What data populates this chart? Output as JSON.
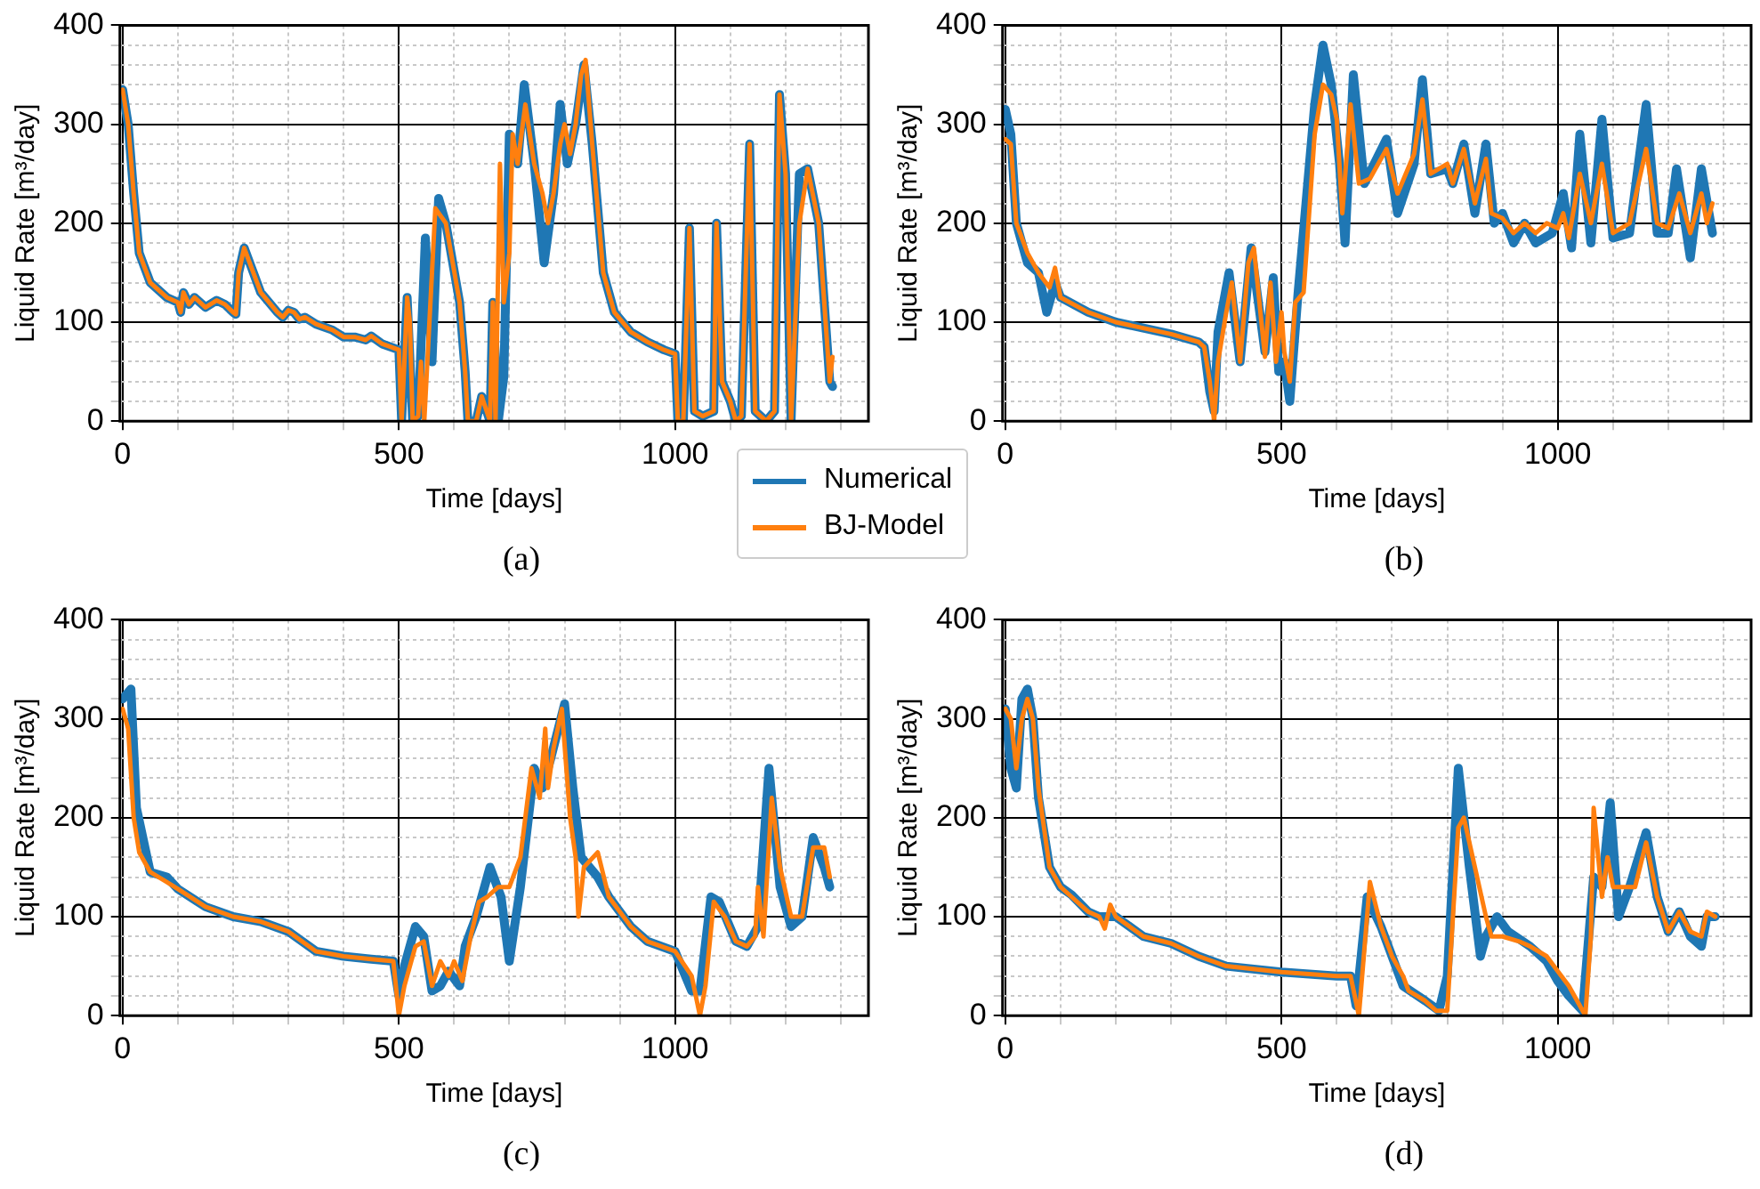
{
  "chart_data": [
    {
      "type": "line",
      "xlabel": "Time [days]",
      "ylabel": "Liquid Rate [m³/day]",
      "annotations": [
        "(a)"
      ],
      "xlim": [
        -5,
        1350
      ],
      "ylim": [
        0,
        400
      ],
      "xticks": [
        0,
        {
          "value": 100,
          "label": null
        },
        {
          "value": 200,
          "label": null
        },
        {
          "value": 300,
          "label": null
        },
        {
          "value": 400,
          "label": null
        },
        500,
        {
          "value": 600,
          "label": null
        },
        {
          "value": 700,
          "label": null
        },
        {
          "value": 800,
          "label": null
        },
        {
          "value": 900,
          "label": null
        },
        1000,
        {
          "value": 1100,
          "label": null
        },
        {
          "value": 1200,
          "label": null
        },
        {
          "value": 1300,
          "label": null
        }
      ],
      "yticks": [
        0,
        {
          "value": 20,
          "label": null
        },
        {
          "value": 40,
          "label": null
        },
        {
          "value": 60,
          "label": null
        },
        {
          "value": 80,
          "label": null
        },
        100,
        {
          "value": 120,
          "label": null
        },
        {
          "value": 140,
          "label": null
        },
        {
          "value": 160,
          "label": null
        },
        {
          "value": 180,
          "label": null
        },
        200,
        {
          "value": 220,
          "label": null
        },
        {
          "value": 240,
          "label": null
        },
        {
          "value": 260,
          "label": null
        },
        {
          "value": 280,
          "label": null
        },
        300,
        {
          "value": 320,
          "label": null
        },
        {
          "value": 340,
          "label": null
        },
        {
          "value": 360,
          "label": null
        },
        {
          "value": 380,
          "label": null
        },
        400
      ],
      "grid": true,
      "legend": "bottom right",
      "series": [
        {
          "name": "Numerical",
          "color": "#1f77b4",
          "x": [
            0,
            10,
            20,
            30,
            50,
            80,
            100,
            105,
            110,
            120,
            130,
            150,
            170,
            185,
            200,
            205,
            210,
            220,
            230,
            250,
            280,
            290,
            300,
            310,
            320,
            330,
            350,
            380,
            400,
            420,
            440,
            450,
            470,
            500,
            505,
            515,
            525,
            535,
            548,
            560,
            572,
            585,
            610,
            620,
            625,
            640,
            650,
            665,
            670,
            680,
            690,
            700,
            715,
            727,
            745,
            763,
            780,
            792,
            805,
            820,
            835,
            850,
            870,
            890,
            920,
            950,
            980,
            1000,
            1005,
            1015,
            1026,
            1035,
            1050,
            1070,
            1075,
            1085,
            1100,
            1110,
            1120,
            1135,
            1145,
            1165,
            1180,
            1189,
            1200,
            1210,
            1225,
            1240,
            1260,
            1270,
            1280,
            1285
          ],
          "values": [
            335,
            300,
            230,
            170,
            140,
            125,
            120,
            110,
            130,
            118,
            125,
            115,
            122,
            118,
            110,
            108,
            150,
            175,
            160,
            130,
            110,
            105,
            112,
            110,
            103,
            105,
            98,
            92,
            85,
            85,
            82,
            86,
            78,
            72,
            0,
            125,
            0,
            5,
            185,
            60,
            225,
            200,
            120,
            50,
            0,
            0,
            25,
            0,
            120,
            0,
            45,
            290,
            260,
            340,
            260,
            160,
            230,
            320,
            260,
            300,
            360,
            280,
            150,
            110,
            90,
            80,
            72,
            68,
            0,
            0,
            195,
            10,
            5,
            10,
            200,
            40,
            20,
            0,
            5,
            280,
            10,
            0,
            10,
            330,
            250,
            0,
            250,
            255,
            200,
            120,
            40,
            35
          ]
        },
        {
          "name": "BJ-Model",
          "color": "#ff7f0e",
          "x": [
            0,
            10,
            20,
            30,
            50,
            80,
            100,
            105,
            110,
            120,
            130,
            150,
            170,
            185,
            200,
            205,
            210,
            220,
            230,
            250,
            280,
            290,
            300,
            310,
            320,
            330,
            350,
            380,
            400,
            420,
            440,
            450,
            470,
            500,
            505,
            510,
            515,
            520,
            525,
            535,
            540,
            546,
            566,
            585,
            610,
            620,
            625,
            640,
            650,
            665,
            670,
            675,
            683,
            690,
            700,
            706,
            715,
            729,
            745,
            760,
            770,
            780,
            792,
            800,
            810,
            820,
            830,
            838,
            850,
            870,
            890,
            920,
            950,
            980,
            1000,
            1005,
            1015,
            1026,
            1035,
            1050,
            1070,
            1075,
            1085,
            1100,
            1110,
            1120,
            1135,
            1145,
            1165,
            1180,
            1189,
            1200,
            1210,
            1225,
            1240,
            1260,
            1270,
            1280,
            1285
          ],
          "values": [
            335,
            300,
            230,
            170,
            140,
            125,
            120,
            110,
            130,
            118,
            125,
            115,
            122,
            118,
            110,
            108,
            150,
            175,
            160,
            130,
            110,
            105,
            112,
            110,
            103,
            105,
            98,
            92,
            85,
            85,
            82,
            86,
            78,
            72,
            0,
            60,
            125,
            100,
            0,
            5,
            60,
            0,
            215,
            200,
            120,
            50,
            0,
            0,
            25,
            0,
            120,
            0,
            260,
            120,
            170,
            290,
            260,
            320,
            260,
            230,
            200,
            230,
            280,
            300,
            270,
            300,
            350,
            365,
            280,
            150,
            110,
            90,
            80,
            72,
            68,
            0,
            0,
            195,
            10,
            5,
            10,
            200,
            40,
            20,
            0,
            5,
            280,
            10,
            0,
            10,
            330,
            250,
            0,
            200,
            255,
            200,
            120,
            40,
            65
          ]
        }
      ]
    },
    {
      "type": "line",
      "xlabel": "Time [days]",
      "ylabel": "Liquid Rate [m³/day]",
      "annotations": [
        "(b)"
      ],
      "xlim": [
        -5,
        1350
      ],
      "ylim": [
        0,
        400
      ],
      "xticks": [
        0,
        {
          "value": 100,
          "label": null
        },
        {
          "value": 200,
          "label": null
        },
        {
          "value": 300,
          "label": null
        },
        {
          "value": 400,
          "label": null
        },
        500,
        {
          "value": 600,
          "label": null
        },
        {
          "value": 700,
          "label": null
        },
        {
          "value": 800,
          "label": null
        },
        {
          "value": 900,
          "label": null
        },
        1000,
        {
          "value": 1100,
          "label": null
        },
        {
          "value": 1200,
          "label": null
        },
        {
          "value": 1300,
          "label": null
        }
      ],
      "yticks": [
        0,
        {
          "value": 20,
          "label": null
        },
        {
          "value": 40,
          "label": null
        },
        {
          "value": 60,
          "label": null
        },
        {
          "value": 80,
          "label": null
        },
        100,
        {
          "value": 120,
          "label": null
        },
        {
          "value": 140,
          "label": null
        },
        {
          "value": 160,
          "label": null
        },
        {
          "value": 180,
          "label": null
        },
        200,
        {
          "value": 220,
          "label": null
        },
        {
          "value": 240,
          "label": null
        },
        {
          "value": 260,
          "label": null
        },
        {
          "value": 280,
          "label": null
        },
        300,
        {
          "value": 320,
          "label": null
        },
        {
          "value": 340,
          "label": null
        },
        {
          "value": 360,
          "label": null
        },
        {
          "value": 380,
          "label": null
        },
        400
      ],
      "grid": true,
      "series": [
        {
          "color": "#1f77b4",
          "x": [
            0,
            10,
            20,
            40,
            60,
            75,
            90,
            100,
            150,
            200,
            300,
            350,
            360,
            370,
            378,
            385,
            405,
            425,
            445,
            470,
            485,
            495,
            505,
            515,
            530,
            560,
            575,
            590,
            605,
            615,
            630,
            650,
            690,
            710,
            740,
            755,
            770,
            800,
            810,
            830,
            850,
            870,
            885,
            900,
            920,
            940,
            960,
            990,
            1010,
            1025,
            1040,
            1060,
            1080,
            1100,
            1130,
            1160,
            1180,
            1200,
            1215,
            1240,
            1260,
            1280
          ],
          "values": [
            315,
            290,
            200,
            160,
            150,
            110,
            140,
            125,
            110,
            100,
            88,
            80,
            75,
            30,
            10,
            90,
            150,
            60,
            175,
            70,
            145,
            50,
            60,
            20,
            130,
            320,
            380,
            340,
            260,
            180,
            350,
            240,
            285,
            210,
            260,
            345,
            250,
            255,
            240,
            280,
            210,
            280,
            200,
            210,
            180,
            200,
            180,
            190,
            230,
            175,
            290,
            180,
            305,
            185,
            190,
            320,
            190,
            190,
            255,
            165,
            255,
            190
          ]
        },
        {
          "color": "#ff7f0e",
          "x": [
            0,
            10,
            20,
            40,
            60,
            80,
            90,
            100,
            150,
            200,
            300,
            350,
            360,
            370,
            378,
            385,
            400,
            410,
            425,
            440,
            450,
            470,
            480,
            490,
            500,
            505,
            515,
            525,
            540,
            560,
            575,
            590,
            600,
            610,
            625,
            640,
            660,
            690,
            710,
            740,
            755,
            770,
            800,
            810,
            830,
            850,
            870,
            880,
            900,
            920,
            940,
            960,
            980,
            1000,
            1010,
            1020,
            1040,
            1060,
            1080,
            1100,
            1130,
            1160,
            1180,
            1200,
            1220,
            1240,
            1260,
            1270,
            1280
          ],
          "values": [
            285,
            280,
            200,
            170,
            150,
            135,
            155,
            125,
            110,
            100,
            88,
            80,
            75,
            40,
            0,
            60,
            110,
            140,
            60,
            160,
            175,
            65,
            140,
            60,
            110,
            70,
            40,
            120,
            130,
            290,
            340,
            330,
            305,
            210,
            320,
            240,
            245,
            275,
            230,
            270,
            325,
            250,
            260,
            240,
            275,
            220,
            265,
            210,
            205,
            190,
            200,
            190,
            200,
            195,
            210,
            185,
            250,
            200,
            260,
            190,
            200,
            275,
            200,
            195,
            230,
            190,
            230,
            200,
            220
          ]
        }
      ]
    },
    {
      "type": "line",
      "xlabel": "Time [days]",
      "ylabel": "Liquid Rate [m³/day]",
      "annotations": [
        "(c)"
      ],
      "xlim": [
        -5,
        1350
      ],
      "ylim": [
        0,
        400
      ],
      "xticks": [
        0,
        {
          "value": 100,
          "label": null
        },
        {
          "value": 200,
          "label": null
        },
        {
          "value": 300,
          "label": null
        },
        {
          "value": 400,
          "label": null
        },
        500,
        {
          "value": 600,
          "label": null
        },
        {
          "value": 700,
          "label": null
        },
        {
          "value": 800,
          "label": null
        },
        {
          "value": 900,
          "label": null
        },
        1000,
        {
          "value": 1100,
          "label": null
        },
        {
          "value": 1200,
          "label": null
        },
        {
          "value": 1300,
          "label": null
        }
      ],
      "yticks": [
        0,
        {
          "value": 20,
          "label": null
        },
        {
          "value": 40,
          "label": null
        },
        {
          "value": 60,
          "label": null
        },
        {
          "value": 80,
          "label": null
        },
        100,
        {
          "value": 120,
          "label": null
        },
        {
          "value": 140,
          "label": null
        },
        {
          "value": 160,
          "label": null
        },
        {
          "value": 180,
          "label": null
        },
        200,
        {
          "value": 220,
          "label": null
        },
        {
          "value": 240,
          "label": null
        },
        {
          "value": 260,
          "label": null
        },
        {
          "value": 280,
          "label": null
        },
        300,
        {
          "value": 320,
          "label": null
        },
        {
          "value": 340,
          "label": null
        },
        {
          "value": 360,
          "label": null
        },
        {
          "value": 380,
          "label": null
        },
        400
      ],
      "grid": true,
      "series": [
        {
          "color": "#1f77b4",
          "x": [
            0,
            15,
            25,
            50,
            80,
            100,
            150,
            200,
            250,
            300,
            350,
            380,
            400,
            450,
            490,
            500,
            510,
            530,
            545,
            560,
            575,
            590,
            610,
            620,
            640,
            665,
            685,
            700,
            720,
            745,
            760,
            775,
            800,
            815,
            830,
            860,
            880,
            920,
            950,
            1000,
            1030,
            1045,
            1065,
            1080,
            1110,
            1130,
            1150,
            1170,
            1190,
            1210,
            1230,
            1250,
            1270,
            1280
          ],
          "values": [
            320,
            330,
            210,
            145,
            140,
            128,
            110,
            100,
            95,
            85,
            65,
            62,
            60,
            57,
            55,
            20,
            50,
            90,
            80,
            25,
            30,
            45,
            30,
            70,
            100,
            150,
            120,
            55,
            130,
            250,
            230,
            260,
            315,
            230,
            160,
            140,
            120,
            90,
            75,
            65,
            25,
            25,
            120,
            115,
            75,
            70,
            90,
            250,
            130,
            90,
            100,
            180,
            150,
            130
          ]
        },
        {
          "color": "#ff7f0e",
          "x": [
            0,
            10,
            20,
            30,
            50,
            80,
            100,
            150,
            200,
            250,
            300,
            350,
            380,
            400,
            450,
            490,
            500,
            510,
            530,
            545,
            560,
            575,
            590,
            600,
            615,
            630,
            645,
            660,
            680,
            700,
            720,
            740,
            755,
            765,
            770,
            780,
            795,
            810,
            820,
            825,
            835,
            860,
            880,
            920,
            950,
            1000,
            1030,
            1045,
            1055,
            1070,
            1090,
            1110,
            1130,
            1145,
            1150,
            1160,
            1175,
            1190,
            1210,
            1230,
            1250,
            1270,
            1280
          ],
          "values": [
            310,
            290,
            200,
            165,
            145,
            135,
            128,
            110,
            100,
            95,
            85,
            65,
            62,
            60,
            57,
            55,
            0,
            30,
            70,
            75,
            30,
            55,
            40,
            55,
            35,
            80,
            115,
            120,
            130,
            130,
            160,
            250,
            220,
            290,
            230,
            270,
            310,
            200,
            160,
            100,
            150,
            165,
            120,
            90,
            75,
            65,
            40,
            0,
            30,
            115,
            100,
            75,
            70,
            80,
            130,
            80,
            220,
            150,
            100,
            100,
            170,
            170,
            140
          ]
        }
      ]
    },
    {
      "type": "line",
      "xlabel": "Time [days]",
      "ylabel": "Liquid Rate [m³/day]",
      "annotations": [
        "(d)"
      ],
      "xlim": [
        -5,
        1350
      ],
      "ylim": [
        0,
        400
      ],
      "xticks": [
        0,
        {
          "value": 100,
          "label": null
        },
        {
          "value": 200,
          "label": null
        },
        {
          "value": 300,
          "label": null
        },
        {
          "value": 400,
          "label": null
        },
        500,
        {
          "value": 600,
          "label": null
        },
        {
          "value": 700,
          "label": null
        },
        {
          "value": 800,
          "label": null
        },
        {
          "value": 900,
          "label": null
        },
        1000,
        {
          "value": 1100,
          "label": null
        },
        {
          "value": 1200,
          "label": null
        },
        {
          "value": 1300,
          "label": null
        }
      ],
      "yticks": [
        0,
        {
          "value": 20,
          "label": null
        },
        {
          "value": 40,
          "label": null
        },
        {
          "value": 60,
          "label": null
        },
        {
          "value": 80,
          "label": null
        },
        100,
        {
          "value": 120,
          "label": null
        },
        {
          "value": 140,
          "label": null
        },
        {
          "value": 160,
          "label": null
        },
        {
          "value": 180,
          "label": null
        },
        200,
        {
          "value": 220,
          "label": null
        },
        {
          "value": 240,
          "label": null
        },
        {
          "value": 260,
          "label": null
        },
        {
          "value": 280,
          "label": null
        },
        300,
        {
          "value": 320,
          "label": null
        },
        {
          "value": 340,
          "label": null
        },
        {
          "value": 360,
          "label": null
        },
        {
          "value": 380,
          "label": null
        },
        400
      ],
      "grid": true,
      "series": [
        {
          "color": "#1f77b4",
          "x": [
            0,
            10,
            20,
            30,
            40,
            50,
            60,
            80,
            100,
            120,
            150,
            170,
            200,
            250,
            300,
            350,
            400,
            500,
            600,
            625,
            635,
            655,
            680,
            700,
            720,
            760,
            785,
            800,
            820,
            840,
            860,
            870,
            890,
            910,
            950,
            980,
            1000,
            1020,
            1045,
            1065,
            1080,
            1095,
            1110,
            1130,
            1160,
            1180,
            1200,
            1220,
            1240,
            1260,
            1270,
            1285
          ],
          "values": [
            310,
            250,
            230,
            320,
            330,
            300,
            220,
            150,
            130,
            122,
            105,
            100,
            100,
            80,
            73,
            60,
            50,
            44,
            40,
            40,
            10,
            120,
            90,
            60,
            30,
            15,
            5,
            40,
            250,
            150,
            60,
            80,
            100,
            85,
            70,
            55,
            35,
            20,
            5,
            140,
            130,
            215,
            100,
            130,
            185,
            120,
            85,
            105,
            80,
            70,
            100,
            100
          ]
        },
        {
          "color": "#ff7f0e",
          "x": [
            0,
            10,
            20,
            30,
            40,
            50,
            60,
            80,
            100,
            120,
            150,
            170,
            180,
            190,
            200,
            250,
            300,
            350,
            400,
            500,
            600,
            625,
            640,
            660,
            680,
            700,
            720,
            730,
            760,
            780,
            800,
            820,
            830,
            850,
            870,
            880,
            900,
            930,
            950,
            980,
            1000,
            1020,
            1040,
            1050,
            1060,
            1065,
            1080,
            1090,
            1100,
            1120,
            1140,
            1160,
            1180,
            1200,
            1220,
            1240,
            1260,
            1270,
            1285
          ],
          "values": [
            310,
            300,
            250,
            300,
            320,
            300,
            230,
            150,
            130,
            120,
            105,
            100,
            88,
            112,
            100,
            80,
            73,
            60,
            50,
            44,
            40,
            40,
            0,
            135,
            90,
            60,
            40,
            25,
            15,
            5,
            5,
            190,
            200,
            150,
            100,
            80,
            80,
            75,
            70,
            60,
            45,
            30,
            10,
            0,
            80,
            210,
            120,
            160,
            130,
            130,
            130,
            175,
            120,
            85,
            105,
            85,
            80,
            105,
            100
          ]
        }
      ]
    }
  ]
}
